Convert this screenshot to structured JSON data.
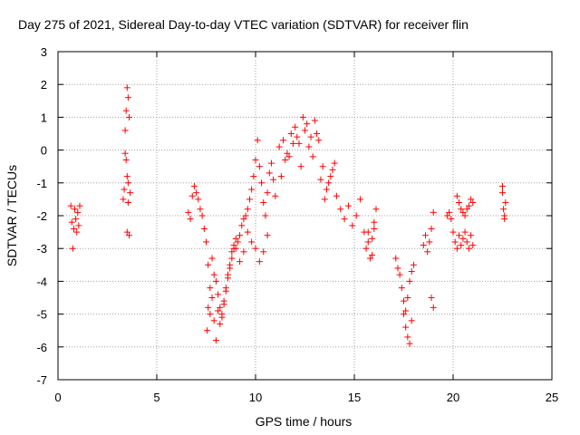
{
  "chart_data": {
    "type": "scatter",
    "title": "Day 275 of 2021, Sidereal Day-to-day VTEC variation (SDTVAR) for receiver flin",
    "xlabel": "GPS time / hours",
    "ylabel": "SDTVAR / TECUs",
    "xlim": [
      0,
      25
    ],
    "ylim": [
      -7,
      3
    ],
    "xticks": [
      0,
      5,
      10,
      15,
      20,
      25
    ],
    "yticks": [
      -7,
      -6,
      -5,
      -4,
      -3,
      -2,
      -1,
      0,
      1,
      2,
      3
    ],
    "xtick_labels": [
      "0",
      "5",
      "10",
      "15",
      "20",
      "25"
    ],
    "ytick_labels": [
      "-7",
      "-6",
      "-5",
      "-4",
      "-3",
      "-2",
      "-1",
      "0",
      "1",
      "2",
      "3"
    ],
    "grid": true,
    "marker": "+",
    "color": "#ff0000",
    "series": [
      {
        "name": "SDTVAR",
        "x": [
          0.65,
          0.7,
          0.75,
          0.8,
          0.85,
          0.9,
          0.95,
          1.0,
          1.05,
          1.1,
          3.3,
          3.35,
          3.4,
          3.45,
          3.5,
          3.55,
          3.6,
          3.65,
          3.45,
          3.5,
          3.55,
          3.4,
          3.5,
          3.6,
          3.55,
          6.6,
          6.7,
          6.8,
          6.9,
          7.0,
          7.1,
          7.2,
          7.3,
          7.4,
          7.5,
          7.6,
          7.7,
          7.8,
          7.9,
          8.0,
          8.1,
          8.2,
          8.3,
          8.4,
          8.5,
          8.6,
          8.7,
          8.8,
          8.9,
          9.0,
          9.1,
          9.2,
          9.3,
          9.4,
          9.5,
          9.6,
          9.7,
          9.8,
          9.9,
          10.0,
          10.1,
          10.2,
          10.3,
          10.4,
          10.5,
          10.6,
          10.7,
          10.8,
          10.9,
          11.0,
          7.55,
          7.6,
          7.7,
          7.8,
          7.9,
          8.0,
          8.1,
          8.2,
          8.3,
          8.4,
          8.5,
          8.6,
          8.7,
          8.8,
          8.9,
          9.0,
          9.2,
          9.4,
          9.6,
          9.8,
          10.0,
          10.2,
          10.4,
          10.6,
          11.2,
          11.4,
          11.6,
          11.8,
          12.0,
          12.2,
          12.4,
          12.6,
          12.8,
          13.0,
          13.2,
          13.4,
          13.6,
          13.8,
          14.0,
          11.3,
          11.5,
          11.7,
          11.9,
          12.1,
          12.3,
          12.5,
          12.7,
          12.9,
          13.1,
          13.3,
          13.5,
          13.7,
          13.9,
          14.1,
          14.3,
          14.5,
          14.7,
          14.9,
          15.1,
          15.3,
          15.5,
          15.7,
          15.9,
          16.0,
          16.1,
          15.6,
          15.7,
          15.8,
          15.9,
          16.0,
          17.1,
          17.2,
          17.3,
          17.4,
          17.5,
          17.6,
          17.7,
          17.8,
          17.9,
          18.0,
          17.5,
          17.6,
          17.7,
          17.8,
          17.9,
          18.5,
          18.6,
          18.7,
          18.8,
          18.9,
          19.0,
          18.9,
          19.0,
          19.7,
          19.8,
          19.9,
          20.0,
          20.1,
          20.2,
          20.3,
          20.4,
          20.5,
          20.6,
          20.7,
          20.8,
          20.9,
          21.0,
          20.2,
          20.3,
          20.4,
          20.5,
          20.6,
          20.7,
          20.8,
          20.9,
          21.0,
          22.5,
          22.55,
          22.6,
          22.65,
          22.5,
          22.6
        ],
        "y": [
          -1.7,
          -2.2,
          -3.0,
          -2.4,
          -1.8,
          -2.1,
          -2.5,
          -1.9,
          -2.3,
          -1.7,
          -1.5,
          -1.2,
          0.6,
          1.2,
          1.9,
          1.6,
          1.0,
          -1.3,
          -0.3,
          -0.8,
          -1.6,
          -0.1,
          -2.5,
          -2.6,
          -1.0,
          -1.9,
          -2.1,
          -1.4,
          -1.1,
          -1.3,
          -1.5,
          -1.8,
          -2.0,
          -2.4,
          -2.8,
          -3.5,
          -4.2,
          -3.3,
          -3.8,
          -4.0,
          -4.4,
          -4.8,
          -5.1,
          -4.6,
          -4.2,
          -3.8,
          -3.5,
          -3.1,
          -2.9,
          -3.0,
          -2.8,
          -2.6,
          -2.3,
          -2.1,
          -2.0,
          -1.8,
          -1.5,
          -1.2,
          -0.8,
          -0.3,
          0.3,
          -0.5,
          -1.0,
          -1.6,
          -2.0,
          -1.3,
          -0.7,
          -0.4,
          -0.9,
          -1.4,
          -5.5,
          -4.8,
          -5.0,
          -4.5,
          -5.2,
          -5.8,
          -4.9,
          -5.3,
          -5.0,
          -4.7,
          -4.3,
          -3.9,
          -3.6,
          -3.3,
          -3.0,
          -2.7,
          -3.4,
          -3.1,
          -2.5,
          -2.8,
          -3.0,
          -3.4,
          -3.1,
          -2.6,
          0.1,
          0.3,
          -0.1,
          0.5,
          0.7,
          0.2,
          1.0,
          0.8,
          0.4,
          0.9,
          0.3,
          -0.5,
          -1.2,
          -0.8,
          -0.4,
          -0.8,
          -0.3,
          -0.2,
          0.2,
          0.4,
          -0.5,
          0.6,
          0.1,
          -0.2,
          0.5,
          -0.9,
          -1.5,
          -1.0,
          -0.6,
          -1.4,
          -1.8,
          -2.1,
          -1.7,
          -2.3,
          -2.0,
          -1.5,
          -2.5,
          -2.8,
          -3.2,
          -2.2,
          -1.8,
          -3.0,
          -2.5,
          -3.3,
          -2.7,
          -2.4,
          -3.3,
          -3.6,
          -3.8,
          -4.2,
          -4.6,
          -4.9,
          -4.5,
          -4.0,
          -3.7,
          -3.5,
          -5.0,
          -5.4,
          -5.7,
          -5.9,
          -5.2,
          -2.9,
          -2.6,
          -3.1,
          -2.8,
          -2.4,
          -1.9,
          -4.5,
          -4.8,
          -2.0,
          -1.9,
          -2.1,
          -2.5,
          -2.8,
          -3.0,
          -2.6,
          -2.9,
          -2.7,
          -2.5,
          -2.8,
          -3.0,
          -2.6,
          -2.9,
          -1.4,
          -1.6,
          -1.8,
          -1.9,
          -2.0,
          -1.8,
          -1.7,
          -1.5,
          -1.6,
          -1.3,
          -1.8,
          -2.0,
          -1.6,
          -1.1,
          -2.1
        ]
      }
    ]
  }
}
